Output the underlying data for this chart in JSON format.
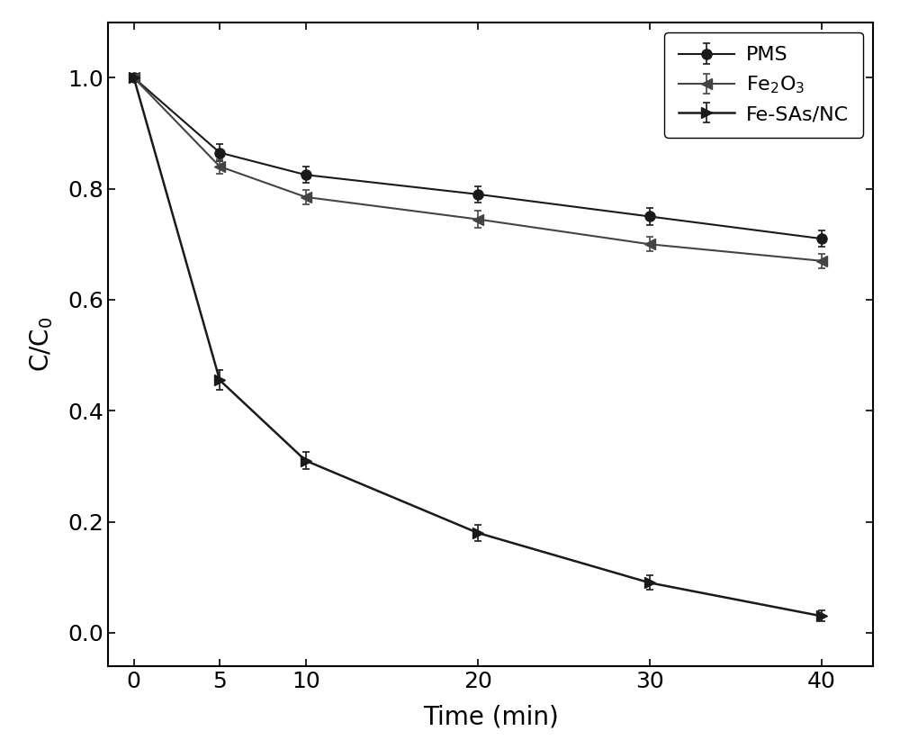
{
  "x": [
    0,
    5,
    10,
    20,
    30,
    40
  ],
  "pms": {
    "y": [
      1.0,
      0.865,
      0.825,
      0.79,
      0.75,
      0.71
    ],
    "yerr": [
      0.0,
      0.015,
      0.015,
      0.015,
      0.015,
      0.015
    ],
    "label": "PMS",
    "color": "#1a1a1a",
    "marker": "o",
    "marker_size": 8,
    "line_width": 1.5,
    "markerfacecolor": "#1a1a1a"
  },
  "fe2o3": {
    "y": [
      1.0,
      0.84,
      0.785,
      0.745,
      0.7,
      0.67
    ],
    "yerr": [
      0.0,
      0.013,
      0.013,
      0.015,
      0.013,
      0.013
    ],
    "label": "Fe$_2$O$_3$",
    "color": "#444444",
    "marker": "<",
    "marker_size": 8,
    "line_width": 1.5,
    "markerfacecolor": "#444444"
  },
  "fe_sas_nc": {
    "y": [
      1.0,
      0.455,
      0.31,
      0.18,
      0.09,
      0.03
    ],
    "yerr": [
      0.0,
      0.018,
      0.015,
      0.015,
      0.013,
      0.01
    ],
    "label": "Fe-SAs/NC",
    "color": "#1a1a1a",
    "marker": ">",
    "marker_size": 8,
    "line_width": 1.8,
    "markerfacecolor": "#1a1a1a"
  },
  "xlabel": "Time (min)",
  "ylabel": "C/C$_0$",
  "xlim": [
    -1.5,
    43
  ],
  "ylim": [
    -0.06,
    1.1
  ],
  "xticks": [
    0,
    5,
    10,
    20,
    30,
    40
  ],
  "yticks": [
    0.0,
    0.2,
    0.4,
    0.6,
    0.8,
    1.0
  ],
  "font_size": 20,
  "tick_font_size": 18,
  "legend_font_size": 16
}
